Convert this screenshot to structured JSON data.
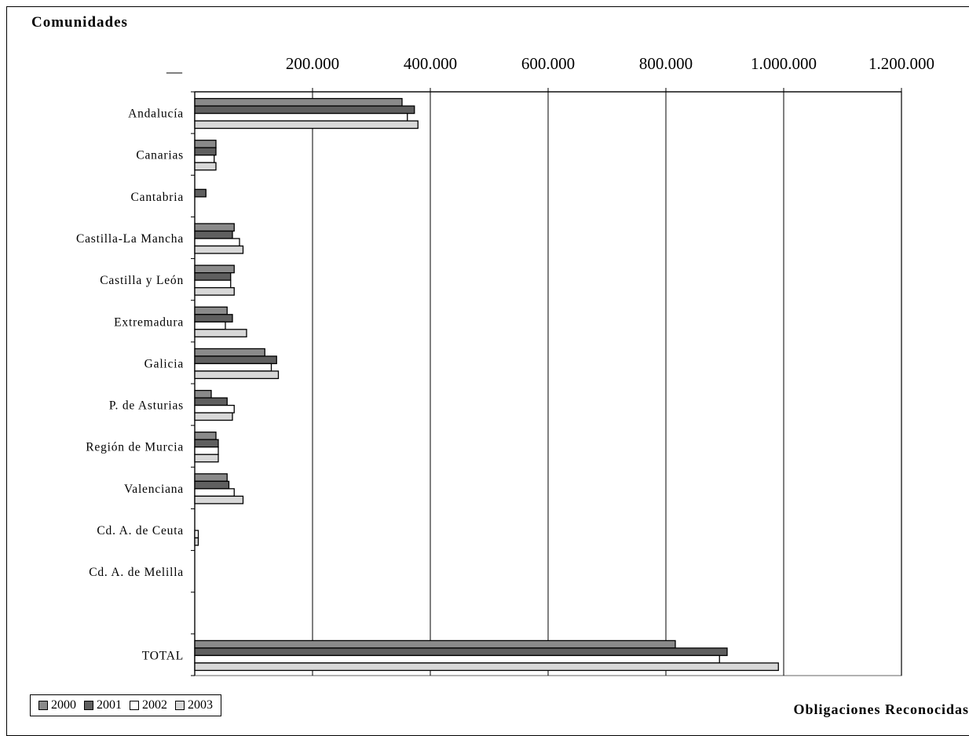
{
  "chart_data": {
    "type": "bar",
    "orientation": "horizontal",
    "title": "Comunidades",
    "corner_label": "__",
    "xlabel": "Obligaciones Reconocidas",
    "xlim": [
      0,
      1200000
    ],
    "xticks": [
      200000,
      400000,
      600000,
      800000,
      1000000,
      1200000
    ],
    "xtick_labels": [
      "200.000",
      "400.000",
      "600.000",
      "800.000",
      "1.000.000",
      "1.200.000"
    ],
    "grid": true,
    "legend_position": "bottom-left",
    "categories": [
      "Andalucía",
      "Canarias",
      "Cantabria",
      "Castilla-La Mancha",
      "Castilla y León",
      "Extremadura",
      "Galicia",
      "P. de Asturias",
      "Región de Murcia",
      "Valenciana",
      "Cd. A. de Ceuta",
      "Cd. A. de Melilla",
      "",
      "TOTAL"
    ],
    "series": [
      {
        "name": "2000",
        "color": "#8a8a8a",
        "values": [
          352000,
          36000,
          0,
          67000,
          67000,
          55000,
          119000,
          28000,
          36000,
          55000,
          0,
          0,
          null,
          816000
        ]
      },
      {
        "name": "2001",
        "color": "#5f5f5f",
        "values": [
          373000,
          36000,
          19000,
          64000,
          61000,
          64000,
          139000,
          55000,
          40000,
          58000,
          0,
          0,
          null,
          904000
        ]
      },
      {
        "name": "2002",
        "color": "#ffffff",
        "values": [
          361000,
          33000,
          0,
          76000,
          61000,
          52000,
          130000,
          67000,
          40000,
          67000,
          6000,
          0,
          null,
          891000
        ]
      },
      {
        "name": "2003",
        "color": "#d8d8d8",
        "values": [
          379000,
          36000,
          0,
          82000,
          67000,
          88000,
          142000,
          64000,
          40000,
          82000,
          6000,
          0,
          null,
          991000
        ]
      }
    ]
  }
}
